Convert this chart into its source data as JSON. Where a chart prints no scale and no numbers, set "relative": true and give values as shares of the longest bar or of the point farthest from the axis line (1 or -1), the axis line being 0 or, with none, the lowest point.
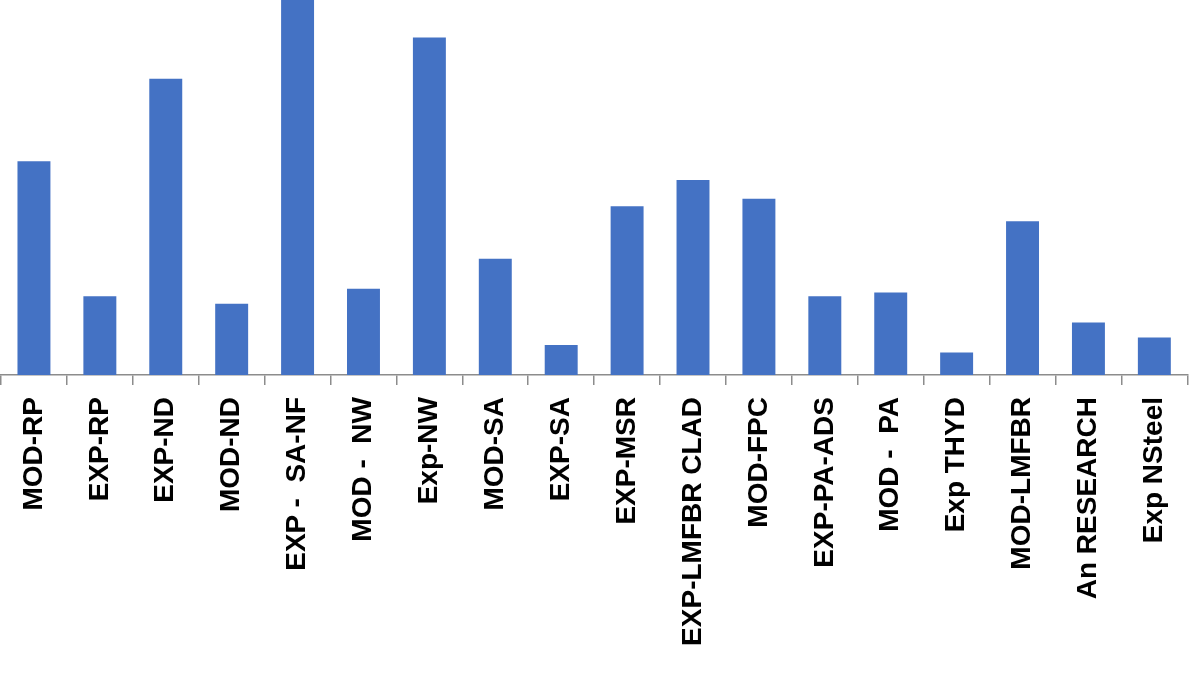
{
  "chart_data": {
    "type": "bar",
    "relative": true,
    "color": "#4472c4",
    "categories": [
      "MOD-RP",
      "EXP-RP",
      "EXP-ND",
      "MOD-ND",
      "EXP -  SA-NF",
      "MOD -  NW",
      "Exp-NW",
      "MOD-SA",
      "EXP-SA",
      "EXP-MSR",
      "EXP-LMFBR CLAD",
      "MOD-FPC",
      "EXP-PA-ADS",
      "MOD -  PA",
      "Exp THYD",
      "MOD-LMFBR",
      "An RESEARCH",
      "Exp NSteel"
    ],
    "values": [
      0.57,
      0.21,
      0.79,
      0.19,
      1,
      0.23,
      0.9,
      0.31,
      0.08,
      0.45,
      0.52,
      0.47,
      0.21,
      0.22,
      0.06,
      0.41,
      0.14,
      0.1
    ]
  }
}
